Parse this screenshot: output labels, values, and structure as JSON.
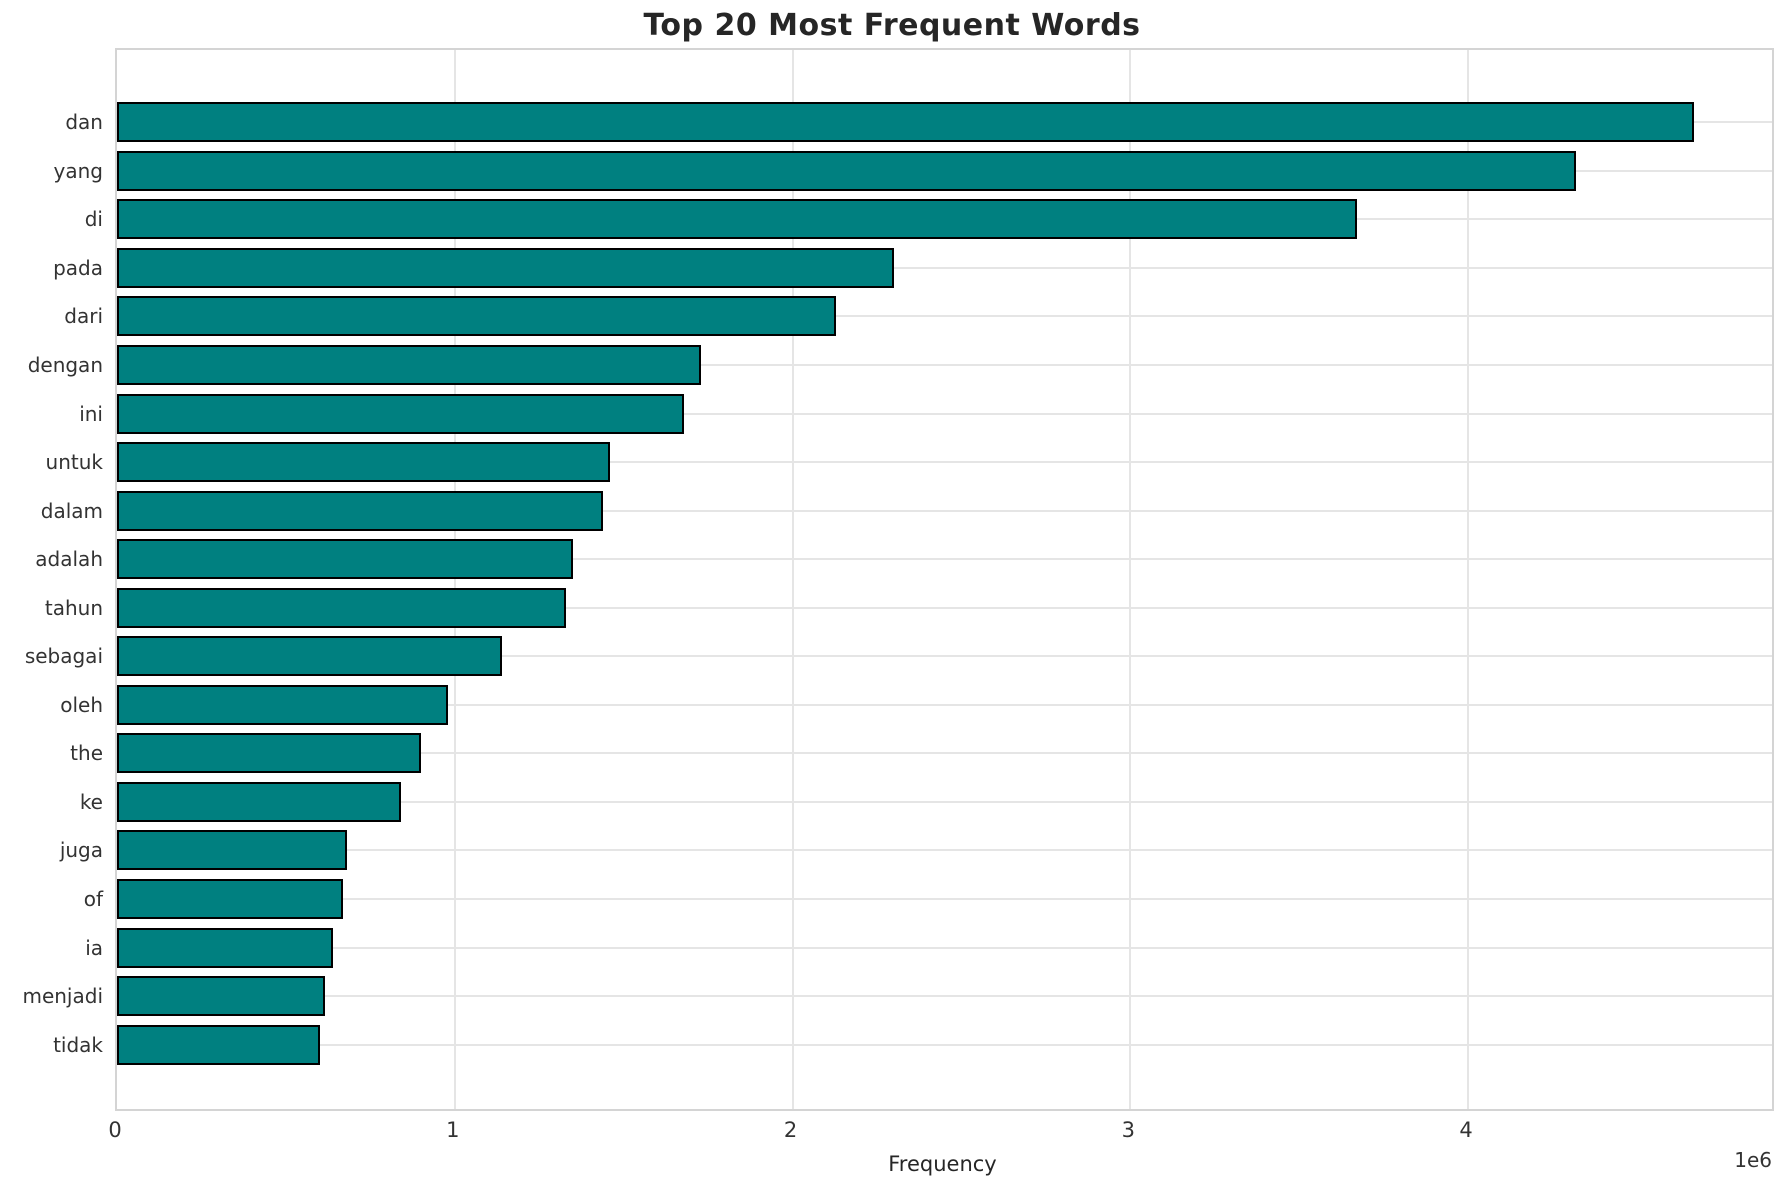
{
  "title": "Top 20 Most Frequent Words",
  "chart_data": {
    "type": "bar",
    "orientation": "horizontal",
    "title": "Top 20 Most Frequent Words",
    "xlabel": "Frequency",
    "ylabel": "",
    "x_multiplier_label": "1e6",
    "xlim": [
      0,
      4900000
    ],
    "x_ticks": [
      0,
      1,
      2,
      3,
      4
    ],
    "x_tick_unit": 1000000,
    "grid": true,
    "legend": false,
    "bar_color": "#008080",
    "bar_edge_color": "#000000",
    "categories": [
      "dan",
      "yang",
      "di",
      "pada",
      "dari",
      "dengan",
      "ini",
      "untuk",
      "dalam",
      "adalah",
      "tahun",
      "sebagai",
      "oleh",
      "the",
      "ke",
      "juga",
      "of",
      "ia",
      "menjadi",
      "tidak"
    ],
    "values": [
      4670000,
      4320000,
      3670000,
      2300000,
      2130000,
      1730000,
      1680000,
      1460000,
      1440000,
      1350000,
      1330000,
      1140000,
      980000,
      900000,
      840000,
      680000,
      670000,
      640000,
      615000,
      600000
    ]
  }
}
